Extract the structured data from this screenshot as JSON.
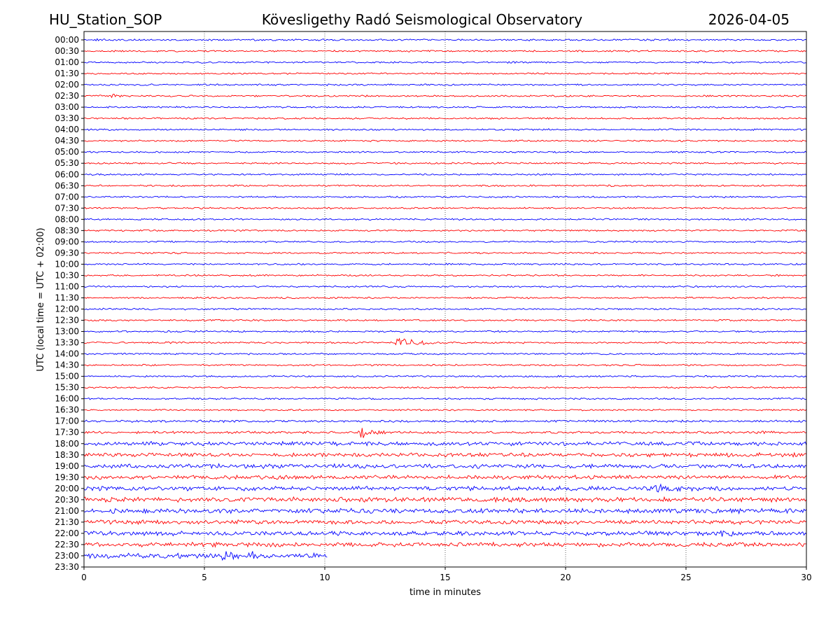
{
  "chart_data": {
    "type": "line",
    "title_left": "HU_Station_SOP",
    "title": "Kövesligethy Radó Seismological Observatory",
    "title_right": "2026-04-05",
    "xlabel": "time in minutes",
    "ylabel": "UTC (local time = UTC + 02:00)",
    "xlim": [
      0,
      30
    ],
    "xticks": [
      0,
      5,
      10,
      15,
      20,
      25,
      30
    ],
    "grid_x": true,
    "colors": [
      "#0000ff",
      "#ff0000"
    ],
    "row_labels": [
      "00:00",
      "00:30",
      "01:00",
      "01:30",
      "02:00",
      "02:30",
      "03:00",
      "03:30",
      "04:00",
      "04:30",
      "05:00",
      "05:30",
      "06:00",
      "06:30",
      "07:00",
      "07:30",
      "08:00",
      "08:30",
      "09:00",
      "09:30",
      "10:00",
      "10:30",
      "11:00",
      "11:30",
      "12:00",
      "12:30",
      "13:00",
      "13:30",
      "14:00",
      "14:30",
      "15:00",
      "15:30",
      "16:00",
      "16:30",
      "17:00",
      "17:30",
      "18:00",
      "18:30",
      "19:00",
      "19:30",
      "20:00",
      "20:30",
      "21:00",
      "21:30",
      "22:00",
      "22:30",
      "23:00",
      "23:30"
    ],
    "series": [
      {
        "name": "00:00",
        "color": "#0000ff",
        "end_minute": 30,
        "noise": 1.0,
        "events": [
          {
            "minute": 0.5,
            "amplitude": 1.5,
            "duration": 0.6
          }
        ]
      },
      {
        "name": "00:30",
        "color": "#ff0000",
        "end_minute": 30,
        "noise": 1.0,
        "events": []
      },
      {
        "name": "01:00",
        "color": "#0000ff",
        "end_minute": 30,
        "noise": 1.0,
        "events": []
      },
      {
        "name": "01:30",
        "color": "#ff0000",
        "end_minute": 30,
        "noise": 1.0,
        "events": []
      },
      {
        "name": "02:00",
        "color": "#0000ff",
        "end_minute": 30,
        "noise": 1.0,
        "events": []
      },
      {
        "name": "02:30",
        "color": "#ff0000",
        "end_minute": 30,
        "noise": 1.0,
        "events": [
          {
            "minute": 1.2,
            "amplitude": 2.0,
            "duration": 0.4
          }
        ]
      },
      {
        "name": "03:00",
        "color": "#0000ff",
        "end_minute": 30,
        "noise": 1.0,
        "events": []
      },
      {
        "name": "03:30",
        "color": "#ff0000",
        "end_minute": 30,
        "noise": 1.0,
        "events": []
      },
      {
        "name": "04:00",
        "color": "#0000ff",
        "end_minute": 30,
        "noise": 1.0,
        "events": []
      },
      {
        "name": "04:30",
        "color": "#ff0000",
        "end_minute": 30,
        "noise": 1.0,
        "events": []
      },
      {
        "name": "05:00",
        "color": "#0000ff",
        "end_minute": 30,
        "noise": 1.0,
        "events": []
      },
      {
        "name": "05:30",
        "color": "#ff0000",
        "end_minute": 30,
        "noise": 1.0,
        "events": []
      },
      {
        "name": "06:00",
        "color": "#0000ff",
        "end_minute": 30,
        "noise": 1.0,
        "events": []
      },
      {
        "name": "06:30",
        "color": "#ff0000",
        "end_minute": 30,
        "noise": 1.0,
        "events": []
      },
      {
        "name": "07:00",
        "color": "#0000ff",
        "end_minute": 30,
        "noise": 1.0,
        "events": []
      },
      {
        "name": "07:30",
        "color": "#ff0000",
        "end_minute": 30,
        "noise": 1.0,
        "events": []
      },
      {
        "name": "08:00",
        "color": "#0000ff",
        "end_minute": 30,
        "noise": 1.0,
        "events": []
      },
      {
        "name": "08:30",
        "color": "#ff0000",
        "end_minute": 30,
        "noise": 1.0,
        "events": []
      },
      {
        "name": "09:00",
        "color": "#0000ff",
        "end_minute": 30,
        "noise": 1.0,
        "events": []
      },
      {
        "name": "09:30",
        "color": "#ff0000",
        "end_minute": 30,
        "noise": 1.0,
        "events": []
      },
      {
        "name": "10:00",
        "color": "#0000ff",
        "end_minute": 30,
        "noise": 1.0,
        "events": []
      },
      {
        "name": "10:30",
        "color": "#ff0000",
        "end_minute": 30,
        "noise": 1.0,
        "events": []
      },
      {
        "name": "11:00",
        "color": "#0000ff",
        "end_minute": 30,
        "noise": 1.0,
        "events": []
      },
      {
        "name": "11:30",
        "color": "#ff0000",
        "end_minute": 30,
        "noise": 1.0,
        "events": []
      },
      {
        "name": "12:00",
        "color": "#0000ff",
        "end_minute": 30,
        "noise": 1.0,
        "events": []
      },
      {
        "name": "12:30",
        "color": "#ff0000",
        "end_minute": 30,
        "noise": 1.0,
        "events": []
      },
      {
        "name": "13:00",
        "color": "#0000ff",
        "end_minute": 30,
        "noise": 1.0,
        "events": []
      },
      {
        "name": "13:30",
        "color": "#ff0000",
        "end_minute": 30,
        "noise": 1.1,
        "events": [
          {
            "minute": 13.0,
            "amplitude": 9.0,
            "duration": 1.8
          }
        ]
      },
      {
        "name": "14:00",
        "color": "#0000ff",
        "end_minute": 30,
        "noise": 1.0,
        "events": []
      },
      {
        "name": "14:30",
        "color": "#ff0000",
        "end_minute": 30,
        "noise": 1.0,
        "events": []
      },
      {
        "name": "15:00",
        "color": "#0000ff",
        "end_minute": 30,
        "noise": 1.0,
        "events": []
      },
      {
        "name": "15:30",
        "color": "#ff0000",
        "end_minute": 30,
        "noise": 1.0,
        "events": []
      },
      {
        "name": "16:00",
        "color": "#0000ff",
        "end_minute": 30,
        "noise": 1.0,
        "events": []
      },
      {
        "name": "16:30",
        "color": "#ff0000",
        "end_minute": 30,
        "noise": 1.0,
        "events": []
      },
      {
        "name": "17:00",
        "color": "#0000ff",
        "end_minute": 30,
        "noise": 1.3,
        "events": []
      },
      {
        "name": "17:30",
        "color": "#ff0000",
        "end_minute": 30,
        "noise": 1.4,
        "events": [
          {
            "minute": 11.5,
            "amplitude": 8.0,
            "duration": 1.2
          }
        ]
      },
      {
        "name": "18:00",
        "color": "#0000ff",
        "end_minute": 30,
        "noise": 2.3,
        "events": []
      },
      {
        "name": "18:30",
        "color": "#ff0000",
        "end_minute": 30,
        "noise": 2.3,
        "events": []
      },
      {
        "name": "19:00",
        "color": "#0000ff",
        "end_minute": 30,
        "noise": 2.5,
        "events": []
      },
      {
        "name": "19:30",
        "color": "#ff0000",
        "end_minute": 30,
        "noise": 2.3,
        "events": []
      },
      {
        "name": "20:00",
        "color": "#0000ff",
        "end_minute": 30,
        "noise": 2.5,
        "events": [
          {
            "minute": 23.8,
            "amplitude": 5.0,
            "duration": 1.5
          }
        ]
      },
      {
        "name": "20:30",
        "color": "#ff0000",
        "end_minute": 30,
        "noise": 2.8,
        "events": []
      },
      {
        "name": "21:00",
        "color": "#0000ff",
        "end_minute": 30,
        "noise": 2.7,
        "events": []
      },
      {
        "name": "21:30",
        "color": "#ff0000",
        "end_minute": 30,
        "noise": 2.4,
        "events": []
      },
      {
        "name": "22:00",
        "color": "#0000ff",
        "end_minute": 30,
        "noise": 2.5,
        "events": [
          {
            "minute": 26.5,
            "amplitude": 4.0,
            "duration": 1.0
          }
        ]
      },
      {
        "name": "22:30",
        "color": "#ff0000",
        "end_minute": 30,
        "noise": 2.5,
        "events": []
      },
      {
        "name": "23:00",
        "color": "#0000ff",
        "end_minute": 10.1,
        "noise": 3.0,
        "events": [
          {
            "minute": 5.8,
            "amplitude": 5.0,
            "duration": 1.2
          },
          {
            "minute": 7.0,
            "amplitude": 4.5,
            "duration": 0.5
          }
        ]
      },
      {
        "name": "23:30",
        "color": "#ff0000",
        "end_minute": 0,
        "noise": 0,
        "events": []
      }
    ]
  }
}
